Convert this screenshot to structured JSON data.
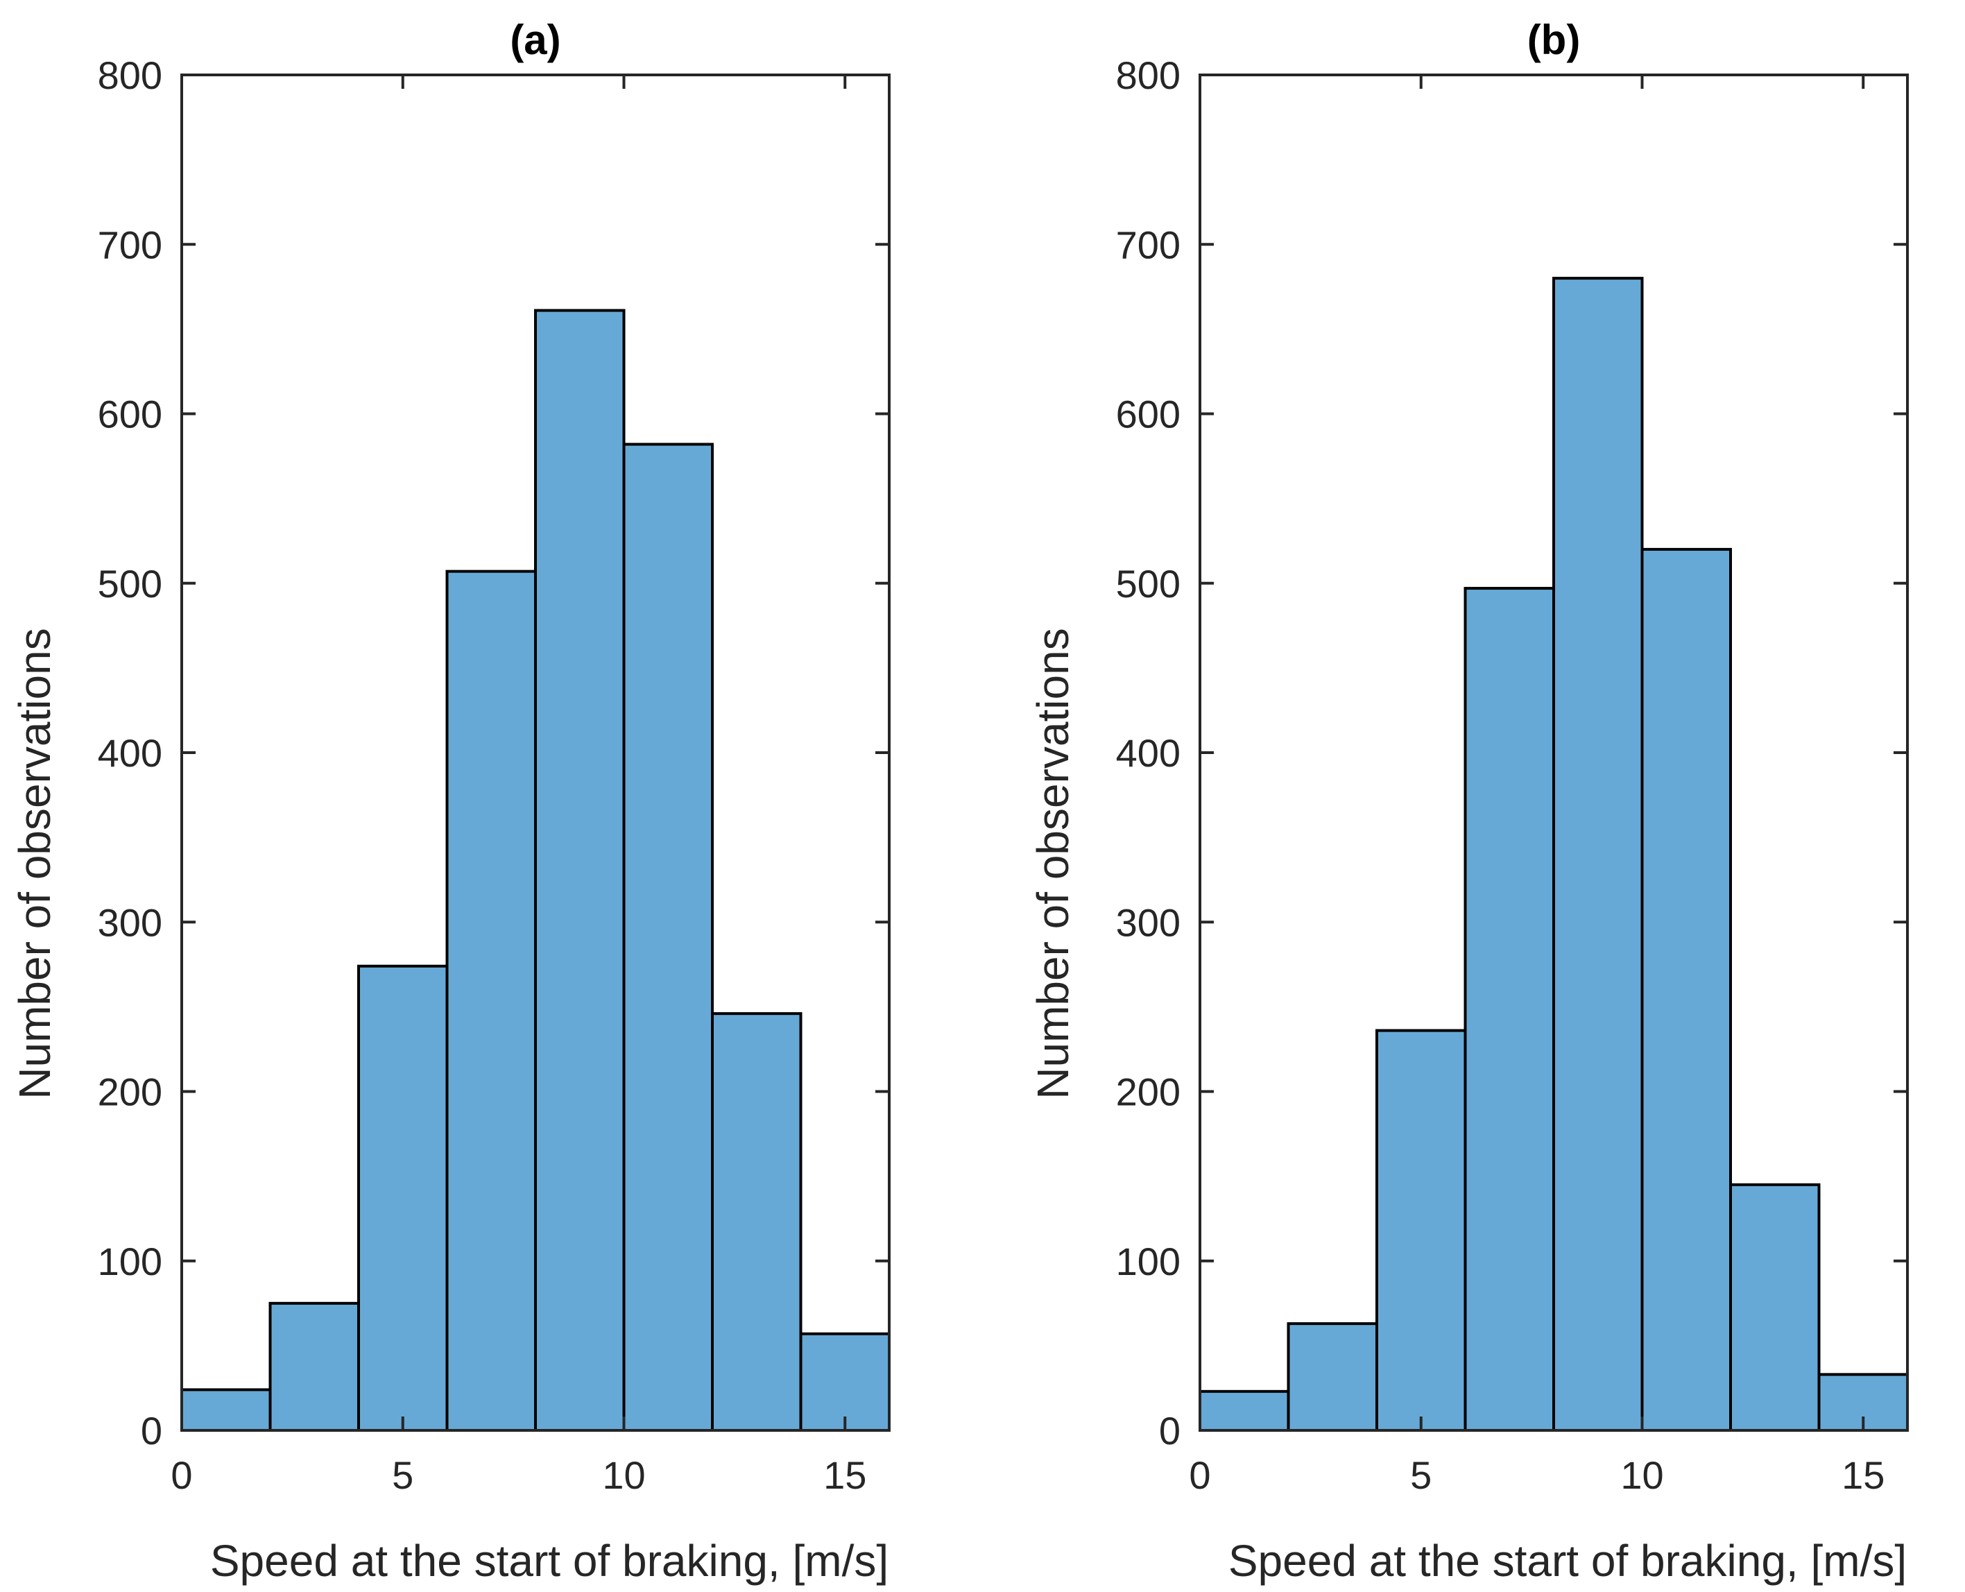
{
  "chart_data": [
    {
      "type": "bar",
      "title": "(a)",
      "xlabel": "Speed at the start of braking, [m/s]",
      "ylabel": "Number of observations",
      "xlim": [
        0,
        16
      ],
      "ylim": [
        0,
        800
      ],
      "xticks": [
        0,
        5,
        10,
        15
      ],
      "yticks": [
        0,
        100,
        200,
        300,
        400,
        500,
        600,
        700,
        800
      ],
      "bin_edges": [
        0,
        2,
        4,
        6,
        8,
        10,
        12,
        14,
        16
      ],
      "values": [
        24,
        75,
        274,
        507,
        661,
        582,
        246,
        57
      ],
      "bar_color": "#66a9d6",
      "grid": false
    },
    {
      "type": "bar",
      "title": "(b)",
      "xlabel": "Speed at the start of braking, [m/s]",
      "ylabel": "Number of observations",
      "xlim": [
        0,
        16
      ],
      "ylim": [
        0,
        800
      ],
      "xticks": [
        0,
        5,
        10,
        15
      ],
      "yticks": [
        0,
        100,
        200,
        300,
        400,
        500,
        600,
        700,
        800
      ],
      "bin_edges": [
        0,
        2,
        4,
        6,
        8,
        10,
        12,
        14,
        16
      ],
      "values": [
        23,
        63,
        236,
        497,
        680,
        520,
        145,
        33
      ],
      "bar_color": "#66a9d6",
      "grid": false
    }
  ]
}
